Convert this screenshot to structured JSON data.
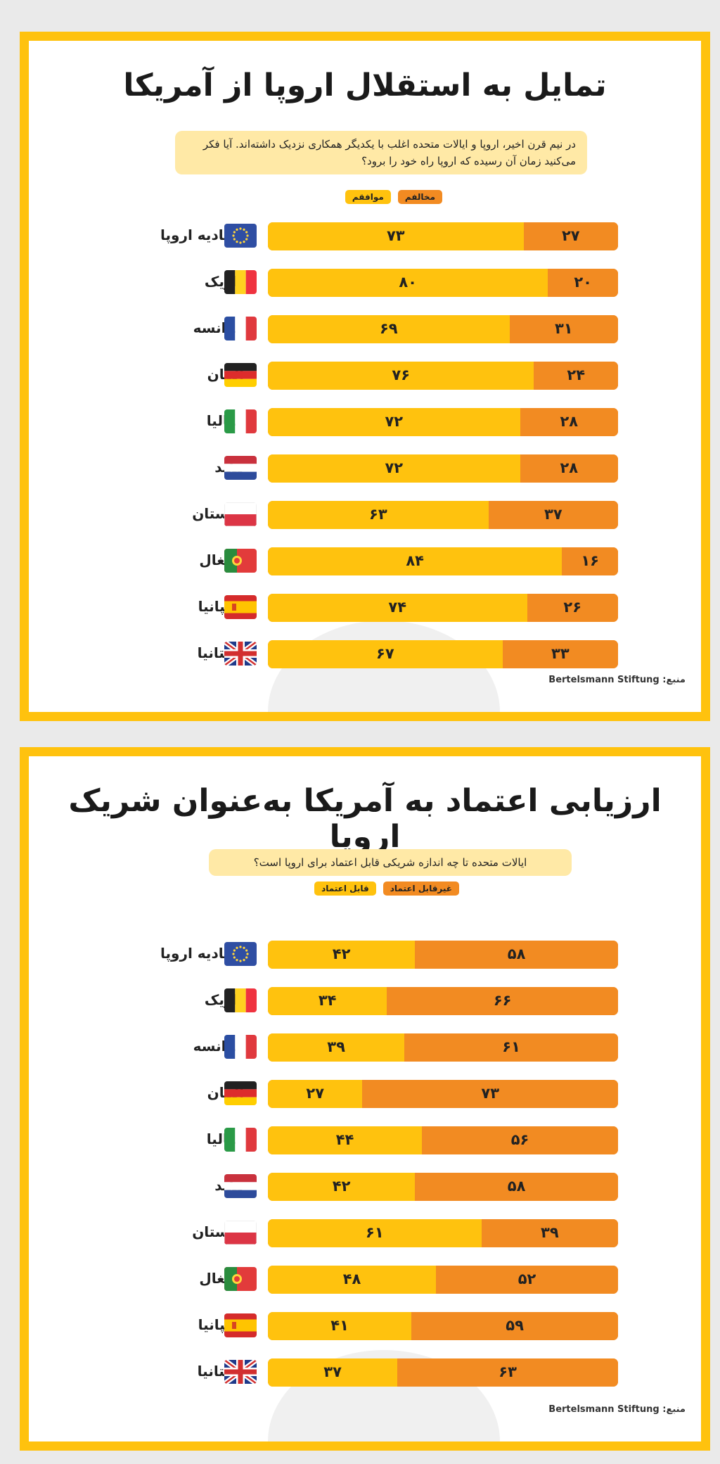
{
  "colors": {
    "agree_reliable": "#ffc20e",
    "disagree_unreliable": "#f28b22",
    "border": "#ffc20e"
  },
  "panels": [
    {
      "title": "تمایل به استقلال اروپا از آمریکا",
      "question": "در نیم قرن اخیر، اروپا و ایالات متحده اغلب با یکدیگر همکاری نزدیک داشته‌اند. آیا فکر می‌کنید زمان آن رسیده که اروپا راه خود را برود؟",
      "legend": [
        "موافقم",
        "مخالفم"
      ],
      "source": "منبع: Bertelsmann Stiftung"
    },
    {
      "title": "ارزیابی اعتماد به آمریکا به‌عنوان شریک اروپا",
      "question": "ایالات متحده تا چه اندازه شریکی قابل اعتماد برای اروپا است؟",
      "legend": [
        "قابل اعتماد",
        "غیرقابل اعتماد"
      ],
      "source": "منبع: Bertelsmann Stiftung"
    }
  ],
  "chart_data": [
    {
      "type": "bar",
      "stacked": true,
      "orientation": "horizontal",
      "title": "تمایل به استقلال اروپا از آمریکا",
      "categories": [
        "اتحادیه اروپا",
        "بلژیک",
        "فرانسه",
        "آلمان",
        "ایتالیا",
        "هلند",
        "لهستان",
        "پرتغال",
        "اسپانیا",
        "بریتانیا"
      ],
      "flags": [
        "eu",
        "be",
        "fr",
        "de",
        "it",
        "nl",
        "pl",
        "pt",
        "es",
        "gb"
      ],
      "series": [
        {
          "name": "موافقم",
          "values": [
            73,
            80,
            69,
            76,
            72,
            72,
            63,
            84,
            74,
            67
          ],
          "labels": [
            "۷۳",
            "۸۰",
            "۶۹",
            "۷۶",
            "۷۲",
            "۷۲",
            "۶۳",
            "۸۴",
            "۷۴",
            "۶۷"
          ],
          "color": "#ffc20e"
        },
        {
          "name": "مخالفم",
          "values": [
            27,
            20,
            31,
            24,
            28,
            28,
            37,
            16,
            26,
            33
          ],
          "labels": [
            "۲۷",
            "۲۰",
            "۳۱",
            "۲۴",
            "۲۸",
            "۲۸",
            "۳۷",
            "۱۶",
            "۲۶",
            "۳۳"
          ],
          "color": "#f28b22"
        }
      ],
      "xlim": [
        0,
        100
      ]
    },
    {
      "type": "bar",
      "stacked": true,
      "orientation": "horizontal",
      "title": "ارزیابی اعتماد به آمریکا به‌عنوان شریک اروپا",
      "categories": [
        "اتحادیه اروپا",
        "بلژیک",
        "فرانسه",
        "آلمان",
        "ایتالیا",
        "هلند",
        "لهستان",
        "پرتغال",
        "اسپانیا",
        "بریتانیا"
      ],
      "flags": [
        "eu",
        "be",
        "fr",
        "de",
        "it",
        "nl",
        "pl",
        "pt",
        "es",
        "gb"
      ],
      "series": [
        {
          "name": "قابل اعتماد",
          "values": [
            42,
            34,
            39,
            27,
            44,
            42,
            61,
            48,
            41,
            37
          ],
          "labels": [
            "۴۲",
            "۳۴",
            "۳۹",
            "۲۷",
            "۴۴",
            "۴۲",
            "۶۱",
            "۴۸",
            "۴۱",
            "۳۷"
          ],
          "color": "#ffc20e"
        },
        {
          "name": "غیرقابل اعتماد",
          "values": [
            58,
            66,
            61,
            73,
            56,
            58,
            39,
            52,
            59,
            63
          ],
          "labels": [
            "۵۸",
            "۶۶",
            "۶۱",
            "۷۳",
            "۵۶",
            "۵۸",
            "۳۹",
            "۵۲",
            "۵۹",
            "۶۳"
          ],
          "color": "#f28b22"
        }
      ],
      "xlim": [
        0,
        100
      ]
    }
  ]
}
